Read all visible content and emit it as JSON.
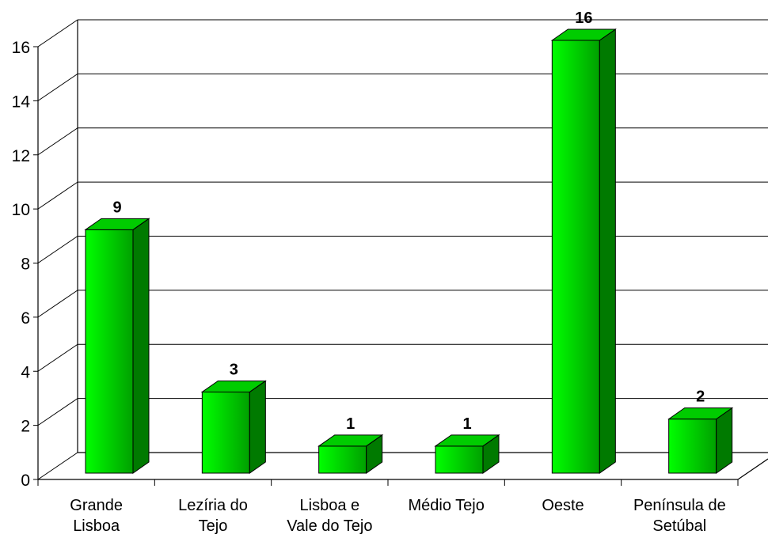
{
  "chart_data": {
    "type": "bar",
    "style": "3d-column",
    "categories": [
      [
        "Grande",
        "Lisboa"
      ],
      [
        "Lezíria do",
        "Tejo"
      ],
      [
        "Lisboa e",
        "Vale do Tejo"
      ],
      [
        "Médio Tejo"
      ],
      [
        "Oeste"
      ],
      [
        "Península de",
        "Setúbal"
      ]
    ],
    "values": [
      9,
      3,
      1,
      1,
      16,
      2
    ],
    "data_labels": [
      "9",
      "3",
      "1",
      "1",
      "16",
      "2"
    ],
    "title": "",
    "xlabel": "",
    "ylabel": "",
    "ylim": [
      0,
      16
    ],
    "yticks": [
      0,
      2,
      4,
      6,
      8,
      10,
      12,
      14,
      16
    ],
    "ytick_labels": [
      "0",
      "2",
      "4",
      "6",
      "8",
      "10",
      "12",
      "14",
      "16"
    ],
    "grid": true,
    "legend": "none",
    "colors": {
      "bar_front_light": "#00ff00",
      "bar_front_dark": "#00a000",
      "bar_side": "#007a00",
      "bar_top": "#00cc00",
      "gridline": "#000000",
      "background": "#ffffff"
    }
  }
}
